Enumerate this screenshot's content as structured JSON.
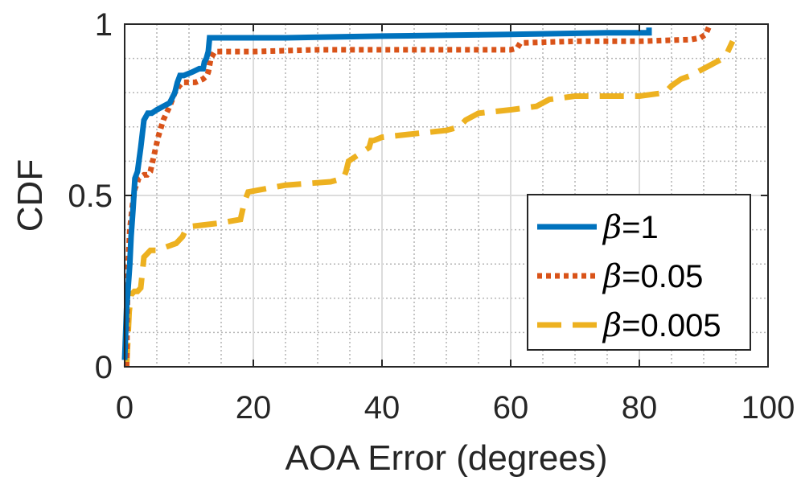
{
  "chart_data": {
    "type": "line",
    "title": "",
    "xlabel": "AOA Error (degrees)",
    "ylabel": "CDF",
    "xlim": [
      0,
      100
    ],
    "ylim": [
      0,
      1
    ],
    "x_ticks": [
      0,
      20,
      40,
      60,
      80,
      100
    ],
    "x_tick_labels": [
      "0",
      "20",
      "40",
      "60",
      "80",
      "100"
    ],
    "y_ticks": [
      0,
      0.5,
      1
    ],
    "y_tick_labels": [
      "0",
      "0.5",
      "1"
    ],
    "grid": true,
    "minor_grid": true,
    "legend_position": "bottom-right",
    "colors": {
      "series_1": "#0072BD",
      "series_2": "#D95319",
      "series_3": "#EDB120",
      "axis": "#262626",
      "major_grid": "#dcdcdc",
      "minor_grid": "#b4b4b4"
    },
    "series": [
      {
        "name": "β=1",
        "beta_symbol": "β",
        "label_suffix": "=1",
        "style": "solid",
        "x": [
          0,
          0.3,
          0.5,
          0.8,
          1.0,
          1.3,
          1.6,
          2.0,
          2.5,
          3.0,
          3.6,
          4.2,
          5.0,
          6.0,
          7.0,
          7.8,
          8.2,
          8.6,
          9.2,
          10.5,
          11.6,
          12.2,
          12.4,
          12.7,
          13.0,
          13.2,
          25.0,
          40.0,
          60.0,
          75.0,
          81.5,
          81.5
        ],
        "y": [
          0.02,
          0.17,
          0.22,
          0.3,
          0.38,
          0.46,
          0.55,
          0.57,
          0.64,
          0.72,
          0.74,
          0.74,
          0.75,
          0.76,
          0.77,
          0.8,
          0.83,
          0.85,
          0.85,
          0.86,
          0.87,
          0.87,
          0.89,
          0.9,
          0.92,
          0.96,
          0.96,
          0.965,
          0.97,
          0.975,
          0.975,
          0.99
        ]
      },
      {
        "name": "β=0.05",
        "beta_symbol": "β",
        "label_suffix": "=0.05",
        "style": "dotted",
        "x": [
          0.3,
          0.5,
          0.8,
          1.2,
          1.6,
          2.2,
          3.0,
          3.5,
          4.0,
          4.6,
          5.2,
          6.0,
          7.0,
          7.8,
          8.5,
          9.0,
          10.0,
          11.0,
          12.2,
          12.8,
          13.0,
          13.4,
          14.0,
          15.0,
          20.0,
          30.0,
          40.0,
          50.0,
          60.0,
          61.0,
          61.5,
          70.0,
          80.0,
          88.0,
          89.5,
          90.3,
          91.0
        ],
        "y": [
          0.0,
          0.28,
          0.4,
          0.47,
          0.52,
          0.55,
          0.56,
          0.56,
          0.57,
          0.62,
          0.67,
          0.72,
          0.76,
          0.8,
          0.82,
          0.83,
          0.83,
          0.83,
          0.84,
          0.85,
          0.86,
          0.9,
          0.92,
          0.92,
          0.92,
          0.925,
          0.925,
          0.925,
          0.925,
          0.93,
          0.945,
          0.95,
          0.95,
          0.955,
          0.96,
          0.97,
          1.0
        ]
      },
      {
        "name": "β=0.005",
        "beta_symbol": "β",
        "label_suffix": "=0.005",
        "style": "dashed",
        "x": [
          0.3,
          0.7,
          1.0,
          1.5,
          2.0,
          2.5,
          3.0,
          4.0,
          5.0,
          8.0,
          9.0,
          9.5,
          10.5,
          15.0,
          18.0,
          18.6,
          19.2,
          25.0,
          32.0,
          34.0,
          34.4,
          34.8,
          38.0,
          38.3,
          38.7,
          40.0,
          45.0,
          50.0,
          52.0,
          53.0,
          55.0,
          60.0,
          64.0,
          66.0,
          70.0,
          80.0,
          84.0,
          85.0,
          86.5,
          88.0,
          91.0,
          93.0,
          93.5,
          94.0,
          94.5
        ],
        "y": [
          0.0,
          0.16,
          0.21,
          0.22,
          0.22,
          0.23,
          0.32,
          0.34,
          0.34,
          0.36,
          0.38,
          0.4,
          0.41,
          0.42,
          0.43,
          0.48,
          0.51,
          0.53,
          0.54,
          0.55,
          0.57,
          0.6,
          0.64,
          0.66,
          0.66,
          0.67,
          0.68,
          0.69,
          0.7,
          0.72,
          0.74,
          0.75,
          0.76,
          0.78,
          0.79,
          0.79,
          0.8,
          0.82,
          0.84,
          0.85,
          0.88,
          0.9,
          0.91,
          0.93,
          0.95
        ]
      }
    ]
  }
}
